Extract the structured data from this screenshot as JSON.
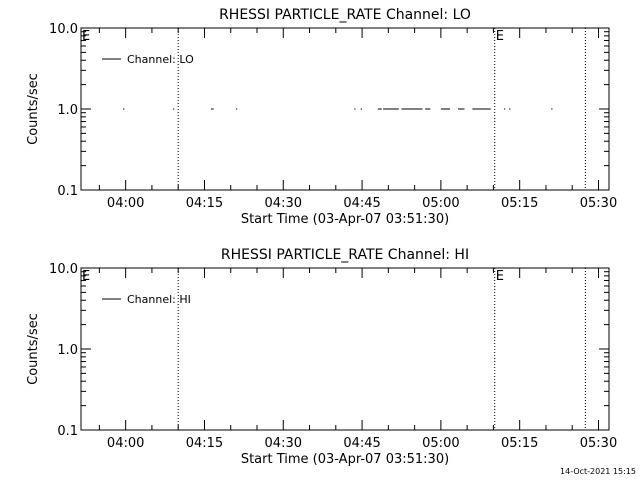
{
  "footer": {
    "timestamp": "14-Oct-2021 15:15"
  },
  "chart_data": [
    {
      "type": "line",
      "title": "RHESSI PARTICLE_RATE Channel: LO",
      "xlabel": "Start Time (03-Apr-07 03:51:30)",
      "ylabel": "Counts/sec",
      "yscale": "log",
      "ylim": [
        0.1,
        10.0
      ],
      "xlim": [
        "03:51:30",
        "05:32:00"
      ],
      "x_ticks": [
        "04:00",
        "04:15",
        "04:30",
        "04:45",
        "05:00",
        "05:15",
        "05:30"
      ],
      "y_ticks": [
        "0.1",
        "1.0",
        "10.0"
      ],
      "legend": {
        "position": "top-left",
        "entries": [
          "Channel: LO"
        ]
      },
      "markers": [
        {
          "time": "04:10:00",
          "label": ""
        },
        {
          "time": "05:10:15",
          "label": "E"
        },
        {
          "time": "05:27:30",
          "label": ""
        }
      ],
      "edge_label": "E",
      "series": [
        {
          "name": "Channel: LO",
          "segments": [
            {
              "start": "03:59:30",
              "end": "03:59:45",
              "value": 1.0
            },
            {
              "start": "04:09:00",
              "end": "04:09:15",
              "value": 1.0
            },
            {
              "start": "04:16:15",
              "end": "04:16:45",
              "value": 1.0
            },
            {
              "start": "04:21:00",
              "end": "04:21:15",
              "value": 1.0
            },
            {
              "start": "04:43:30",
              "end": "04:43:45",
              "value": 1.0
            },
            {
              "start": "04:44:45",
              "end": "04:45:00",
              "value": 1.0
            },
            {
              "start": "04:48:00",
              "end": "04:48:45",
              "value": 1.0
            },
            {
              "start": "04:49:00",
              "end": "04:52:00",
              "value": 1.0
            },
            {
              "start": "04:52:30",
              "end": "04:56:30",
              "value": 1.0
            },
            {
              "start": "04:57:00",
              "end": "04:58:00",
              "value": 1.0
            },
            {
              "start": "05:00:00",
              "end": "05:01:45",
              "value": 1.0
            },
            {
              "start": "05:03:15",
              "end": "05:04:30",
              "value": 1.0
            },
            {
              "start": "05:06:00",
              "end": "05:09:30",
              "value": 1.0
            },
            {
              "start": "05:12:00",
              "end": "05:12:15",
              "value": 1.0
            },
            {
              "start": "05:13:00",
              "end": "05:13:15",
              "value": 1.0
            },
            {
              "start": "05:21:00",
              "end": "05:21:15",
              "value": 1.0
            }
          ]
        }
      ]
    },
    {
      "type": "line",
      "title": "RHESSI PARTICLE_RATE Channel: HI",
      "xlabel": "Start Time (03-Apr-07 03:51:30)",
      "ylabel": "Counts/sec",
      "yscale": "log",
      "ylim": [
        0.1,
        10.0
      ],
      "xlim": [
        "03:51:30",
        "05:32:00"
      ],
      "x_ticks": [
        "04:00",
        "04:15",
        "04:30",
        "04:45",
        "05:00",
        "05:15",
        "05:30"
      ],
      "y_ticks": [
        "0.1",
        "1.0",
        "10.0"
      ],
      "legend": {
        "position": "top-left",
        "entries": [
          "Channel: HI"
        ]
      },
      "markers": [
        {
          "time": "04:10:00",
          "label": ""
        },
        {
          "time": "05:10:15",
          "label": "E"
        },
        {
          "time": "05:27:30",
          "label": ""
        }
      ],
      "edge_label": "E",
      "series": [
        {
          "name": "Channel: HI",
          "segments": []
        }
      ]
    }
  ]
}
